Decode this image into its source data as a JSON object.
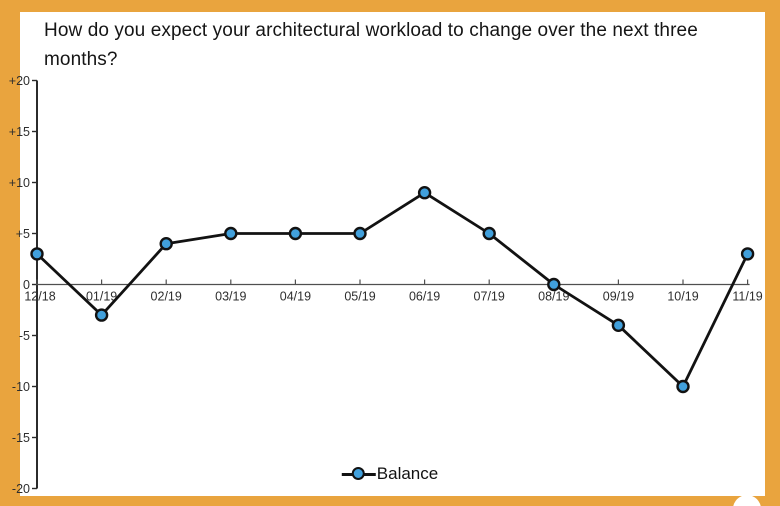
{
  "page": {
    "border_color": "#E9A43E",
    "background_color": "#FFFFFF"
  },
  "chart_data": {
    "type": "line",
    "title": "How do you expect your architectural workload to change over the next three months?",
    "categories": [
      "12/18",
      "01/19",
      "02/19",
      "03/19",
      "04/19",
      "05/19",
      "06/19",
      "07/19",
      "08/19",
      "09/19",
      "10/19",
      "11/19"
    ],
    "series": [
      {
        "name": "Balance",
        "values": [
          3,
          -3,
          4,
          5,
          5,
          5,
          9,
          5,
          0,
          -4,
          -10,
          3
        ]
      }
    ],
    "y_ticks": [
      {
        "label": "+20",
        "value": 20
      },
      {
        "label": "+15",
        "value": 15
      },
      {
        "label": "+10",
        "value": 10
      },
      {
        "label": "+5",
        "value": 5
      },
      {
        "label": "0",
        "value": 0
      },
      {
        "label": "-5",
        "value": -5
      },
      {
        "label": "-10",
        "value": -10
      },
      {
        "label": "-15",
        "value": -15
      },
      {
        "label": "-20",
        "value": -20
      }
    ],
    "ylim": [
      -20,
      20
    ],
    "xlabel": "",
    "ylabel": "",
    "grid": false,
    "legend_position": "bottom-center",
    "line_color": "#121212",
    "marker_fill": "#41A0DC",
    "marker_stroke": "#121212",
    "axis_color": "#2b2b2b",
    "zero_line_color": "#4f4f4f",
    "tick_label_color": "#2e2e2e"
  }
}
